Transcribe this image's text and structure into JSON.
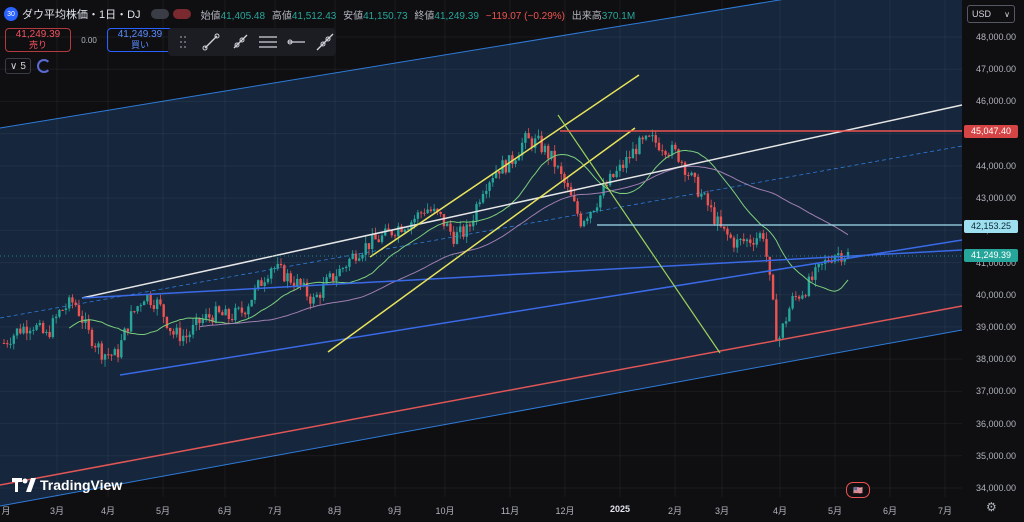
{
  "header": {
    "badge": "30",
    "title": "ダウ平均株価・1日・DJ",
    "open_label": "始値",
    "open": "41,405.48",
    "high_label": "高値",
    "high": "41,512.43",
    "low_label": "安値",
    "low": "41,150.73",
    "close_label": "終値",
    "close": "41,249.39",
    "change": "−119.07 (−0.29%)",
    "volume_label": "出来高",
    "volume": "370.1M"
  },
  "trade": {
    "sell_price": "41,249.39",
    "sell_label": "売り",
    "spread": "0.00",
    "buy_price": "41,249.39",
    "buy_label": "買い"
  },
  "controls": {
    "indicator_count": "5",
    "chevron": "∨"
  },
  "currency": {
    "label": "USD",
    "chevron": "∨"
  },
  "price_axis": [
    "48,000.00",
    "47,000.00",
    "46,000.00",
    "45,000.00",
    "44,000.00",
    "43,000.00",
    "42,000.00",
    "41,000.00",
    "40,000.00",
    "39,000.00",
    "38,000.00",
    "37,000.00",
    "36,000.00",
    "35,000.00",
    "34,000.00"
  ],
  "price_tags": {
    "resistance": "45,047.40",
    "support": "42,153.25",
    "last": "41,249.39"
  },
  "time_axis": [
    "3月",
    "4月",
    "5月",
    "6月",
    "7月",
    "8月",
    "9月",
    "10月",
    "11月",
    "12月",
    "2025",
    "2月",
    "3月",
    "4月",
    "5月",
    "6月",
    "7月"
  ],
  "time_axis_left": "月",
  "logo": {
    "text": "TradingView"
  },
  "colors": {
    "up": "#26a69a",
    "down": "#ef5350",
    "channel": "#2e7bd9",
    "channel_fill": "#1e3a5f",
    "yellow": "#e8e35b",
    "white": "#e6e6e6",
    "red_line": "#e05656",
    "blue_line": "#3a6ae8",
    "ma_green": "#7ccf7c",
    "ma_purple": "#a07fb0",
    "cyan": "#9fe0f0"
  },
  "chart_data": {
    "type": "candlestick",
    "ylim": [
      33800,
      48400
    ],
    "x_period": "2024-02 to 2025-07",
    "closes_weekly": [
      38500,
      38900,
      39100,
      38700,
      39500,
      39800,
      38800,
      38200,
      38100,
      39300,
      40000,
      39700,
      38800,
      38700,
      39200,
      39400,
      39300,
      39500,
      40200,
      40900,
      40600,
      40300,
      39800,
      40400,
      40800,
      41300,
      41600,
      41800,
      42100,
      42300,
      42700,
      42400,
      41800,
      42000,
      43300,
      43900,
      44100,
      44800,
      44700,
      44200,
      43300,
      42300,
      42800,
      43500,
      44000,
      44600,
      44800,
      44600,
      44300,
      43500,
      42800,
      42000,
      41600,
      41700,
      41900,
      38500,
      39800,
      40200,
      40800,
      41300,
      41249
    ]
  }
}
